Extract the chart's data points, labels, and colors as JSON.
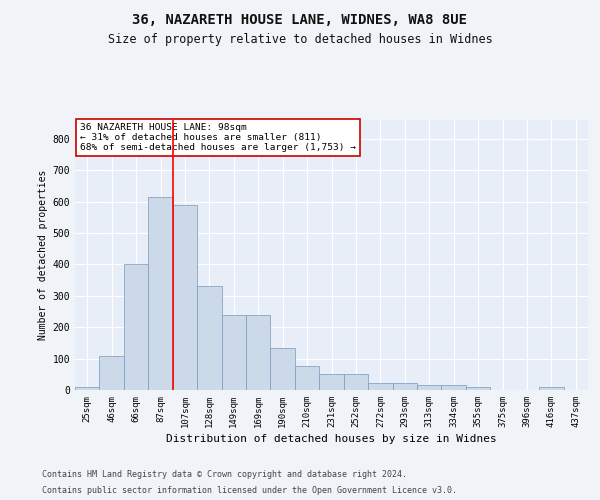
{
  "title_line1": "36, NAZARETH HOUSE LANE, WIDNES, WA8 8UE",
  "title_line2": "Size of property relative to detached houses in Widnes",
  "xlabel": "Distribution of detached houses by size in Widnes",
  "ylabel": "Number of detached properties",
  "categories": [
    "25sqm",
    "46sqm",
    "66sqm",
    "87sqm",
    "107sqm",
    "128sqm",
    "149sqm",
    "169sqm",
    "190sqm",
    "210sqm",
    "231sqm",
    "252sqm",
    "272sqm",
    "293sqm",
    "313sqm",
    "334sqm",
    "355sqm",
    "375sqm",
    "396sqm",
    "416sqm",
    "437sqm"
  ],
  "values": [
    8,
    107,
    401,
    615,
    590,
    330,
    238,
    238,
    135,
    77,
    50,
    50,
    21,
    21,
    15,
    15,
    8,
    0,
    0,
    8,
    0
  ],
  "bar_color": "#ccd9e8",
  "bar_edge_color": "#7799bb",
  "red_line_x": 3.5,
  "annotation_line1": "36 NAZARETH HOUSE LANE: 98sqm",
  "annotation_line2": "← 31% of detached houses are smaller (811)",
  "annotation_line3": "68% of semi-detached houses are larger (1,753) →",
  "ylim": [
    0,
    860
  ],
  "yticks": [
    0,
    100,
    200,
    300,
    400,
    500,
    600,
    700,
    800
  ],
  "background_color": "#e8eef8",
  "grid_color": "#ffffff",
  "footer_line1": "Contains HM Land Registry data © Crown copyright and database right 2024.",
  "footer_line2": "Contains public sector information licensed under the Open Government Licence v3.0."
}
